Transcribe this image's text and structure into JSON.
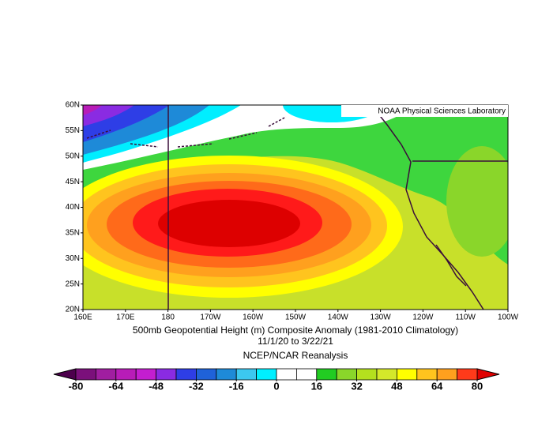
{
  "map": {
    "lat_labels": [
      "60N",
      "55N",
      "50N",
      "45N",
      "40N",
      "35N",
      "30N",
      "25N",
      "20N"
    ],
    "lon_labels": [
      "160E",
      "170E",
      "180",
      "170W",
      "160W",
      "150W",
      "140W",
      "130W",
      "120W",
      "110W",
      "100W"
    ],
    "credit": "NOAA Physical Sciences Laboratory",
    "caption": {
      "title": "500mb Geopotential Height (m) Composite Anomaly (1981-2010 Climatology)",
      "dates": "11/1/20  to 3/22/21",
      "source": "NCEP/NCAR Reanalysis"
    },
    "colorbar": {
      "range": [
        -80,
        80
      ],
      "ticks": [
        -80,
        -64,
        -48,
        -32,
        -16,
        0,
        16,
        32,
        48,
        64,
        80
      ],
      "colors": [
        "#7b107b",
        "#a01ea0",
        "#b81cb8",
        "#c41ed0",
        "#8a2be2",
        "#2e3ee6",
        "#1f62d9",
        "#1e8ad8",
        "#3cc8f0",
        "#00f0ff",
        "#ffffff",
        "#ffffff",
        "#22cc22",
        "#8ad62a",
        "#b4e01e",
        "#d4e82a",
        "#ffff00",
        "#ffc41e",
        "#ffa01e",
        "#ff3a1a"
      ],
      "under_color": "#4d004d",
      "over_color": "#e00000"
    }
  }
}
